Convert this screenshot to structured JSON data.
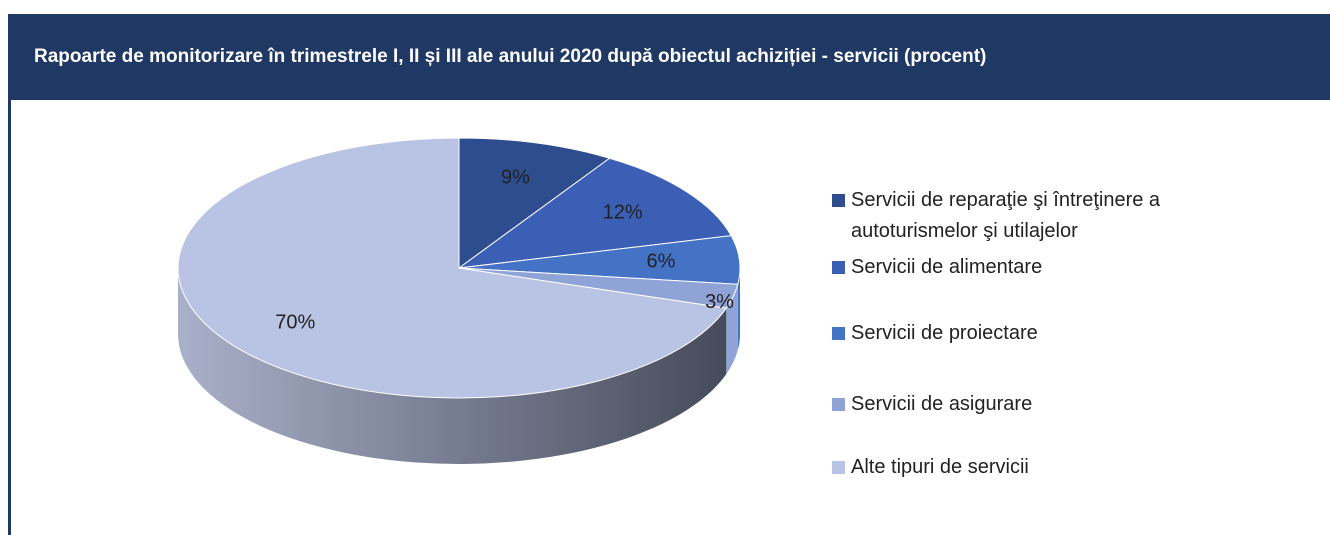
{
  "chart_data": {
    "type": "pie3d",
    "title": "Rapoarte de monitorizare în trimestrele I, II și III ale anului 2020 după obiectul achiziției - servicii (procent)",
    "categories": [
      "Servicii de reparaţie şi întreţinere a autoturismelor şi utilajelor",
      "Servicii de alimentare",
      "Servicii de proiectare",
      "Servicii de asigurare",
      "Alte tipuri de servicii"
    ],
    "values": [
      9,
      12,
      6,
      3,
      70
    ],
    "value_labels": [
      "9%",
      "12%",
      "6%",
      "3%",
      "70%"
    ],
    "colors": [
      "#2e4d8e",
      "#3a5fb5",
      "#4472c4",
      "#8fa3d6",
      "#b9c3e3"
    ],
    "legend": "right"
  }
}
